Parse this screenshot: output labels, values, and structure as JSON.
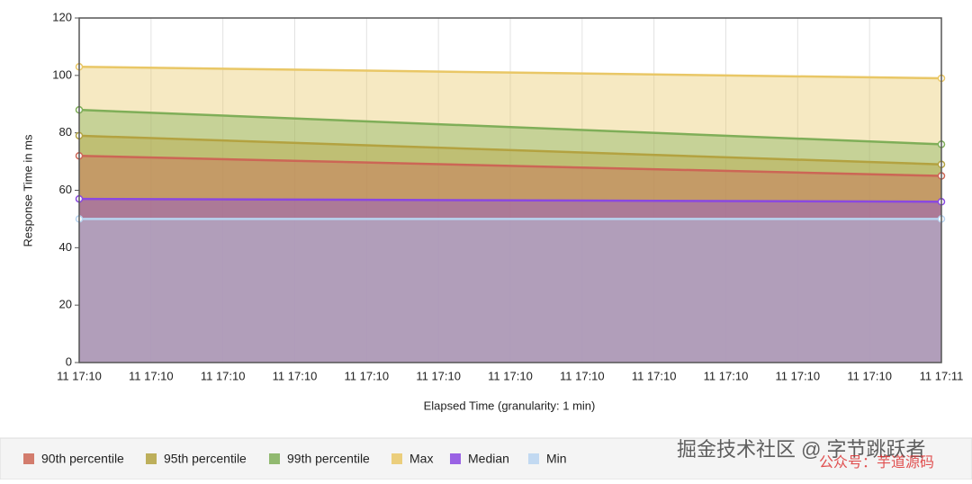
{
  "chart_data": {
    "type": "area",
    "y_label": "Response Time in ms",
    "x_label": "Elapsed Time (granularity: 1 min)",
    "x": [
      "11 17:10",
      "11 17:11"
    ],
    "xticks": [
      "11 17:10",
      "11 17:10",
      "11 17:10",
      "11 17:10",
      "11 17:10",
      "11 17:10",
      "11 17:10",
      "11 17:10",
      "11 17:10",
      "11 17:10",
      "11 17:10",
      "11 17:10",
      "11 17:11"
    ],
    "ylim": [
      0,
      120
    ],
    "yticks": [
      0,
      20,
      40,
      60,
      80,
      100,
      120
    ],
    "grid": true,
    "legend": "bottom",
    "series": [
      {
        "name": "90th percentile",
        "color": "#cc6655",
        "values": [
          72,
          65
        ]
      },
      {
        "name": "95th percentile",
        "color": "#b3a240",
        "values": [
          79,
          69
        ]
      },
      {
        "name": "99th percentile",
        "color": "#7fae58",
        "values": [
          88,
          76
        ]
      },
      {
        "name": "Max",
        "color": "#e9c766",
        "values": [
          103,
          99
        ]
      },
      {
        "name": "Median",
        "color": "#8a48e0",
        "values": [
          57,
          56
        ]
      },
      {
        "name": "Min",
        "color": "#b8d4f0",
        "values": [
          50,
          50
        ]
      }
    ]
  },
  "watermark": {
    "line1": "掘金技术社区 @ 字节跳跃者",
    "line2": "公众号：芋道源码"
  }
}
